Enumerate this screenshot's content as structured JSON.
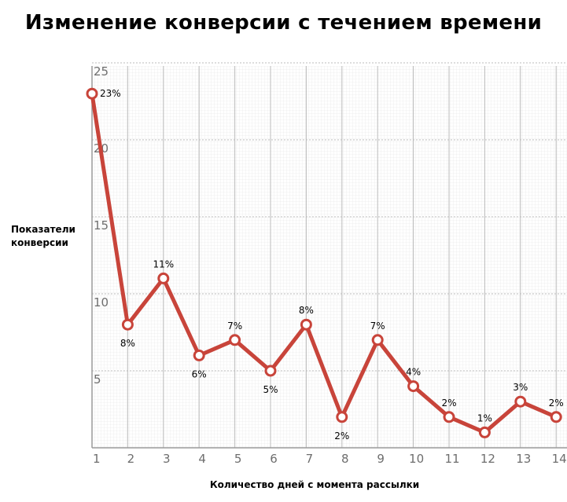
{
  "chart_data": {
    "type": "line",
    "title": "Изменение конверсии с течением времени",
    "xlabel": "Количество дней с момента рассылки",
    "ylabel_lines": [
      "Показатели",
      "конверсии"
    ],
    "x": [
      1,
      2,
      3,
      4,
      5,
      6,
      7,
      8,
      9,
      10,
      11,
      12,
      13,
      14
    ],
    "y": [
      23,
      8,
      11,
      6,
      7,
      5,
      8,
      2,
      7,
      4,
      2,
      1,
      3,
      2
    ],
    "data_labels": [
      "23%",
      "8%",
      "11%",
      "6%",
      "7%",
      "5%",
      "8%",
      "2%",
      "7%",
      "4%",
      "2%",
      "1%",
      "3%",
      "2%"
    ],
    "label_positions": [
      "right",
      "below",
      "above",
      "below",
      "above",
      "below",
      "above",
      "below",
      "above",
      "above",
      "above",
      "above",
      "above",
      "above"
    ],
    "yticks": [
      5,
      10,
      15,
      20,
      25
    ],
    "xticks": [
      1,
      2,
      3,
      4,
      5,
      6,
      7,
      8,
      9,
      10,
      11,
      12,
      13,
      14
    ],
    "ylim": [
      0,
      25
    ],
    "grid": true,
    "legend": false,
    "line_color": "#c8443a",
    "marker_fill": "#ffffff",
    "grid_color": "#bbbbbb",
    "tick_color": "#6e6e6e"
  }
}
